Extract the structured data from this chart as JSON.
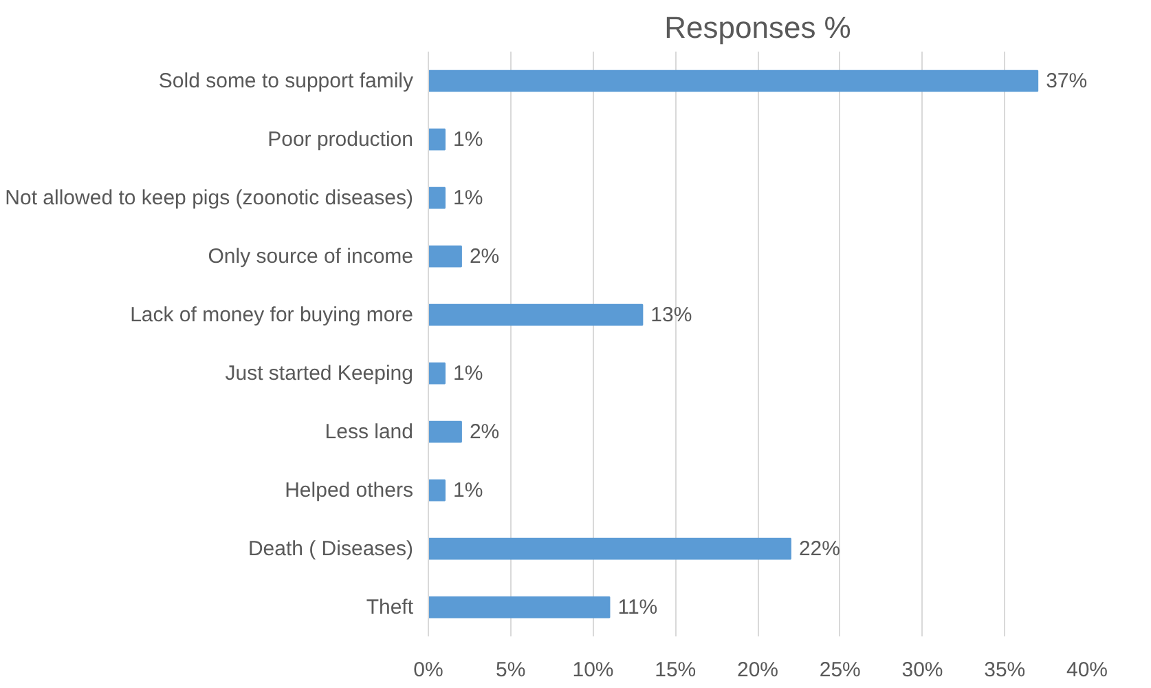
{
  "chart_data": {
    "type": "bar",
    "orientation": "horizontal",
    "title": "Responses %",
    "categories": [
      "Sold some to support family",
      "Poor production",
      "Not allowed to keep pigs (zoonotic diseases)",
      "Only source of income",
      "Lack of money for buying more",
      "Just started Keeping",
      "Less land",
      "Helped others",
      "Death ( Diseases)",
      "Theft"
    ],
    "values": [
      37,
      1,
      1,
      2,
      13,
      1,
      2,
      1,
      22,
      11
    ],
    "value_labels": [
      "37%",
      "1%",
      "1%",
      "2%",
      "13%",
      "1%",
      "2%",
      "1%",
      "22%",
      "11%"
    ],
    "color": "#5b9bd5",
    "xlim": [
      0,
      40
    ],
    "xticks": [
      {
        "value": 0,
        "label": "0%"
      },
      {
        "value": 5,
        "label": "5%"
      },
      {
        "value": 10,
        "label": "10%"
      },
      {
        "value": 15,
        "label": "15%"
      },
      {
        "value": 20,
        "label": "20%"
      },
      {
        "value": 25,
        "label": "25%"
      },
      {
        "value": 30,
        "label": "30%"
      },
      {
        "value": 35,
        "label": "35%"
      },
      {
        "value": 40,
        "label": "40%"
      }
    ],
    "grid": "x"
  }
}
